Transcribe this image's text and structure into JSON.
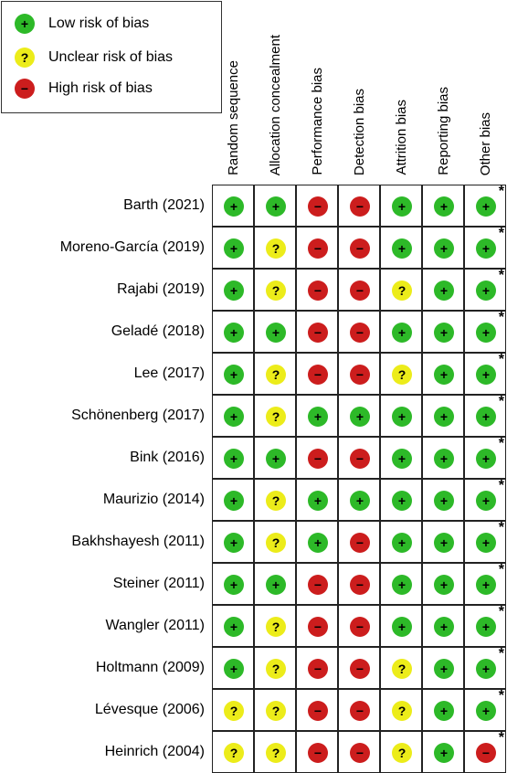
{
  "legend": [
    {
      "symbol": "+",
      "label": "Low risk of bias",
      "color": "#2db928"
    },
    {
      "symbol": "?",
      "label": "Unclear risk of bias",
      "color": "#ecec1a"
    },
    {
      "symbol": "−",
      "label": "High risk of bias",
      "color": "#cc1d1d"
    }
  ],
  "chart_data": {
    "type": "table",
    "columns": [
      "Random sequence",
      "Allocation concealment",
      "Performance bias",
      "Detection bias",
      "Attrition bias",
      "Reporting bias",
      "Other bias"
    ],
    "rows": [
      {
        "study": "Barth (2021)",
        "ratings": [
          "+",
          "+",
          "−",
          "−",
          "+",
          "+",
          "+*"
        ]
      },
      {
        "study": "Moreno-García (2019)",
        "ratings": [
          "+",
          "?",
          "−",
          "−",
          "+",
          "+",
          "+*"
        ]
      },
      {
        "study": "Rajabi (2019)",
        "ratings": [
          "+",
          "?",
          "−",
          "−",
          "?",
          "+",
          "+*"
        ]
      },
      {
        "study": "Geladé (2018)",
        "ratings": [
          "+",
          "+",
          "−",
          "−",
          "+",
          "+",
          "+*"
        ]
      },
      {
        "study": "Lee (2017)",
        "ratings": [
          "+",
          "?",
          "−",
          "−",
          "?",
          "+",
          "+*"
        ]
      },
      {
        "study": "Schönenberg (2017)",
        "ratings": [
          "+",
          "?",
          "+",
          "+",
          "+",
          "+",
          "+*"
        ]
      },
      {
        "study": "Bink (2016)",
        "ratings": [
          "+",
          "+",
          "−",
          "−",
          "+",
          "+",
          "+*"
        ]
      },
      {
        "study": "Maurizio (2014)",
        "ratings": [
          "+",
          "?",
          "+",
          "+",
          "+",
          "+",
          "+*"
        ]
      },
      {
        "study": "Bakhshayesh (2011)",
        "ratings": [
          "+",
          "?",
          "+",
          "−",
          "+",
          "+",
          "+*"
        ]
      },
      {
        "study": "Steiner (2011)",
        "ratings": [
          "+",
          "+",
          "−",
          "−",
          "+",
          "+",
          "+*"
        ]
      },
      {
        "study": "Wangler (2011)",
        "ratings": [
          "+",
          "?",
          "−",
          "−",
          "+",
          "+",
          "+*"
        ]
      },
      {
        "study": "Holtmann (2009)",
        "ratings": [
          "+",
          "?",
          "−",
          "−",
          "?",
          "+",
          "+*"
        ]
      },
      {
        "study": "Lévesque (2006)",
        "ratings": [
          "?",
          "?",
          "−",
          "−",
          "?",
          "+",
          "+*"
        ]
      },
      {
        "study": "Heinrich (2004)",
        "ratings": [
          "?",
          "?",
          "−",
          "−",
          "?",
          "+",
          "−*"
        ]
      }
    ]
  }
}
